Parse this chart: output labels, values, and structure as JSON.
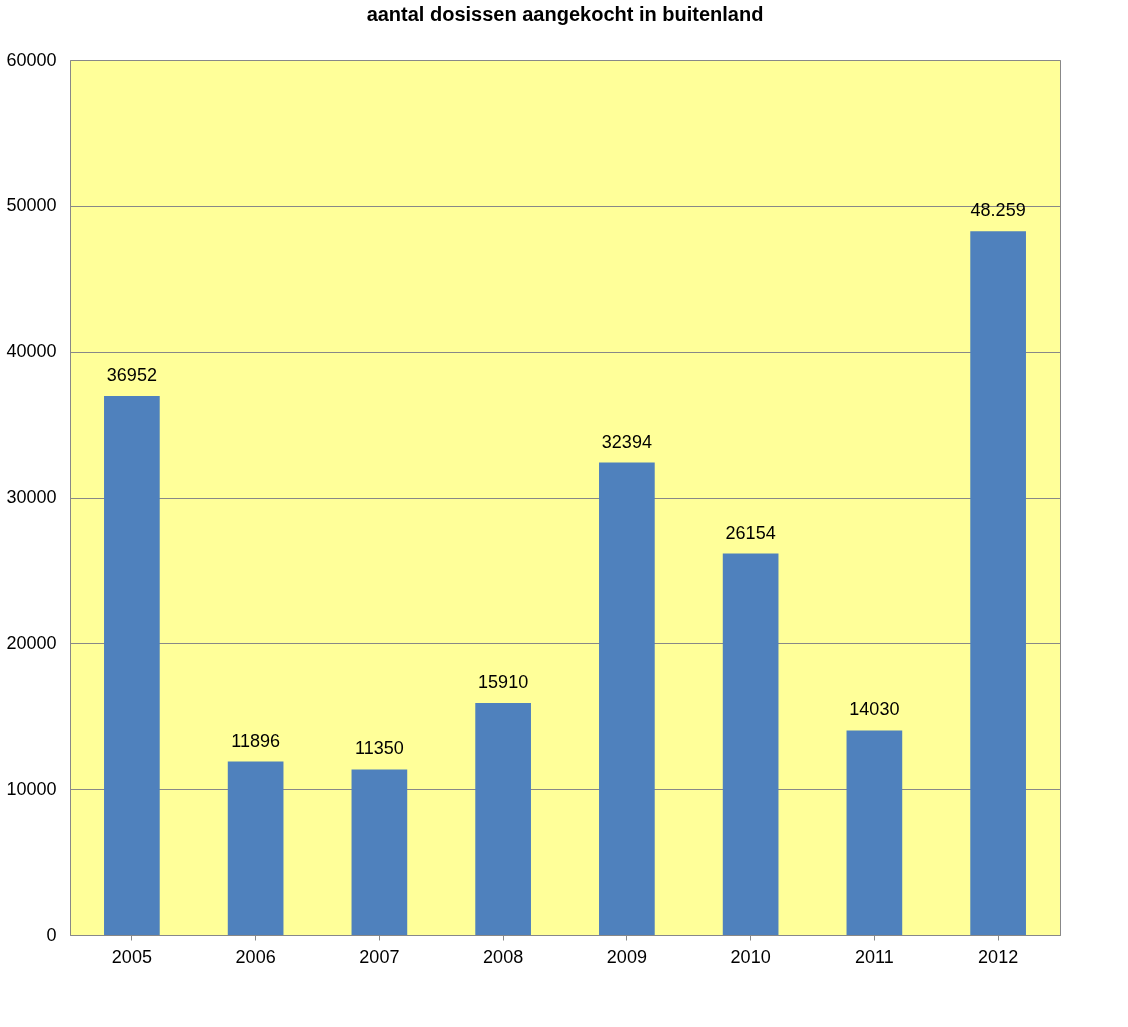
{
  "chart_data": {
    "type": "bar",
    "title": "aantal dosissen aangekocht in buitenland",
    "categories": [
      "2005",
      "2006",
      "2007",
      "2008",
      "2009",
      "2010",
      "2011",
      "2012"
    ],
    "values": [
      36952,
      11896,
      11350,
      15910,
      32394,
      26154,
      14030,
      48259
    ],
    "value_labels": [
      "36952",
      "11896",
      "11350",
      "15910",
      "32394",
      "26154",
      "14030",
      "48.259"
    ],
    "color": "#4f81bd",
    "ylim": [
      0,
      60000
    ],
    "yticks": [
      0,
      10000,
      20000,
      30000,
      40000,
      50000,
      60000
    ],
    "grid": "y"
  }
}
